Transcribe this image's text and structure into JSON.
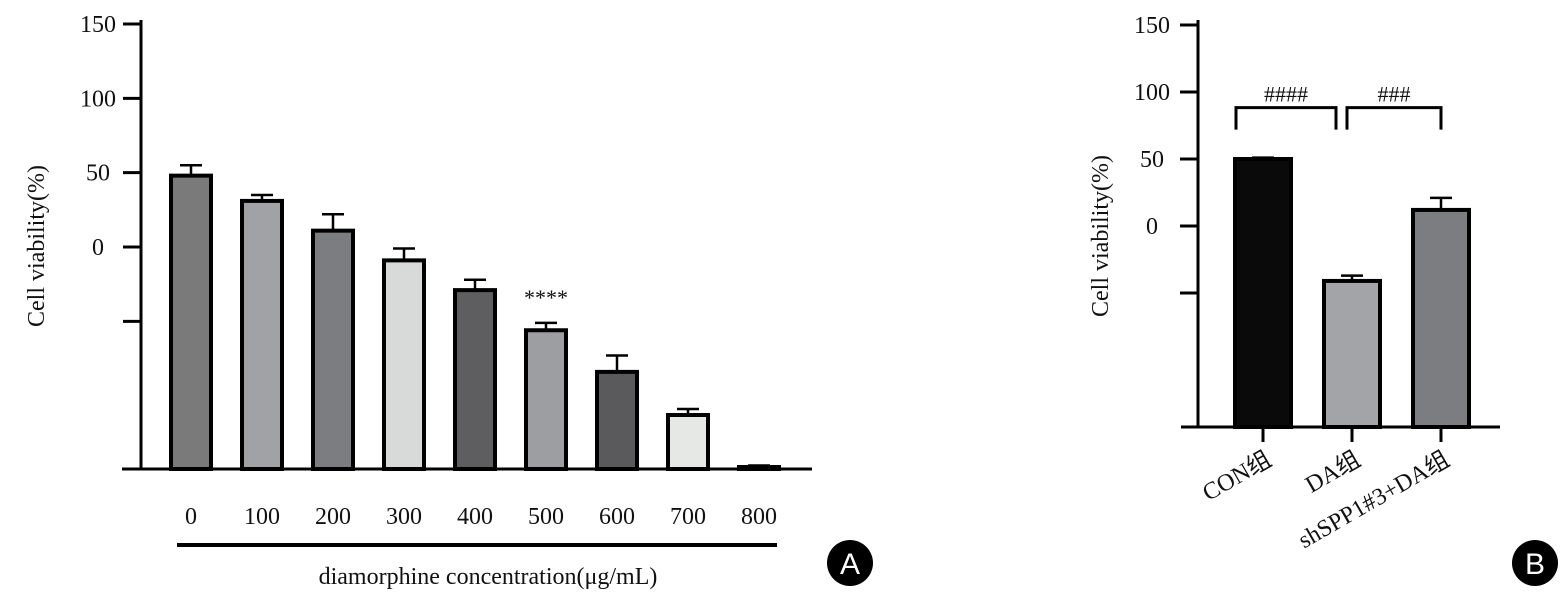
{
  "chart_data": [
    {
      "panel": "A",
      "type": "bar",
      "ylabel": "Cell viability(%)",
      "xlabel": "diamorphine concentration(μg/mL)",
      "ylim": [
        -150,
        150
      ],
      "yticks": [
        0,
        50,
        100,
        150
      ],
      "categories": [
        "0",
        "100",
        "200",
        "300",
        "400",
        "500",
        "600",
        "700",
        "800"
      ],
      "values": [
        48,
        31,
        11,
        -9,
        -29,
        -56,
        -84,
        -113,
        -148
      ],
      "errors": [
        7,
        4,
        11,
        8,
        7,
        5,
        11,
        4,
        1
      ],
      "colors": [
        "#7a7a7a",
        "#a0a2a6",
        "#7c7d80",
        "#d8dad9",
        "#5e5e60",
        "#9c9ea2",
        "#5a5a5c",
        "#e6e8e6",
        "#1a1a1a"
      ],
      "annotations": [
        {
          "category": "500",
          "text": "****"
        }
      ]
    },
    {
      "panel": "B",
      "type": "bar",
      "ylabel": "Cell viability(%)",
      "ylim": [
        -150,
        150
      ],
      "yticks": [
        0,
        50,
        100,
        150
      ],
      "categories": [
        "CON组",
        "DA组",
        "shSPP1#3+DA组"
      ],
      "values": [
        50,
        -41,
        12
      ],
      "errors": [
        1,
        4,
        9
      ],
      "colors": [
        "#0a0a0a",
        "#a2a4a8",
        "#7c7d80"
      ],
      "comparisons": [
        {
          "from": "CON组",
          "to": "DA组",
          "text": "####"
        },
        {
          "from": "DA组",
          "to": "shSPP1#3+DA组",
          "text": "###"
        }
      ]
    }
  ]
}
